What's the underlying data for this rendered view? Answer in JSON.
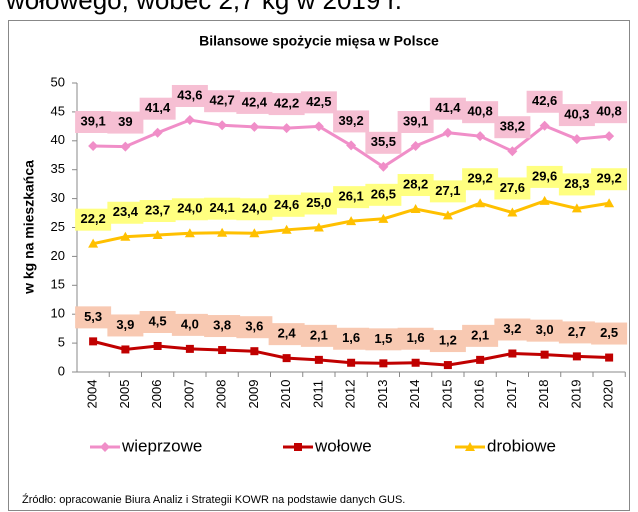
{
  "header_text": "wołowego, wobec 2,7 kg w 2019 r.",
  "chart_data": {
    "type": "line",
    "title": "Bilansowe spożycie mięsa w Polsce",
    "y_label": "w kg na mieszkańca",
    "source": "Źródło: opracowanie Biura Analiz i Strategii KOWR na podstawie danych GUS.",
    "categories": [
      "2004",
      "2005",
      "2006",
      "2007",
      "2008",
      "2009",
      "2010",
      "2011",
      "2012",
      "2013",
      "2014",
      "2015",
      "2016",
      "2017",
      "2018",
      "2019",
      "2020"
    ],
    "ylim": [
      0,
      50
    ],
    "yticks": [
      0,
      5,
      10,
      15,
      20,
      25,
      30,
      35,
      40,
      45,
      50
    ],
    "grid": false,
    "legend": "bottom",
    "series": [
      {
        "name": "wieprzowe",
        "color": "#f08ec8",
        "label_color": "#f6bfd3",
        "marker": "diamond",
        "values": [
          39.1,
          39,
          41.4,
          43.6,
          42.7,
          42.4,
          42.2,
          42.5,
          39.2,
          35.5,
          39.1,
          41.4,
          40.8,
          38.2,
          42.6,
          40.3,
          40.8
        ],
        "value_labels": [
          "39,1",
          "39",
          "41,4",
          "43,6",
          "42,7",
          "42,4",
          "42,2",
          "42,5",
          "39,2",
          "35,5",
          "39,1",
          "41,4",
          "40,8",
          "38,2",
          "42,6",
          "40,3",
          "40,8"
        ]
      },
      {
        "name": "wołowe",
        "color": "#c00000",
        "label_color": "#f8c9b2",
        "marker": "square",
        "values": [
          5.3,
          3.9,
          4.5,
          4.0,
          3.8,
          3.6,
          2.4,
          2.1,
          1.6,
          1.5,
          1.6,
          1.2,
          2.1,
          3.2,
          3.0,
          2.7,
          2.5
        ],
        "value_labels": [
          "5,3",
          "3,9",
          "4,5",
          "4,0",
          "3,8",
          "3,6",
          "2,4",
          "2,1",
          "1,6",
          "1,5",
          "1,6",
          "1,2",
          "2,1",
          "3,2",
          "3,0",
          "2,7",
          "2,5"
        ]
      },
      {
        "name": "drobiowe",
        "color": "#ffc000",
        "label_color": "#ffff80",
        "marker": "triangle",
        "values": [
          22.2,
          23.4,
          23.7,
          24.0,
          24.1,
          24.0,
          24.6,
          25.0,
          26.1,
          26.5,
          28.2,
          27.1,
          29.2,
          27.6,
          29.6,
          28.3,
          29.2
        ],
        "value_labels": [
          "22,2",
          "23,4",
          "23,7",
          "24,0",
          "24,1",
          "24,0",
          "24,6",
          "25,0",
          "26,1",
          "26,5",
          "28,2",
          "27,1",
          "29,2",
          "27,6",
          "29,6",
          "28,3",
          "29,2"
        ]
      }
    ]
  }
}
